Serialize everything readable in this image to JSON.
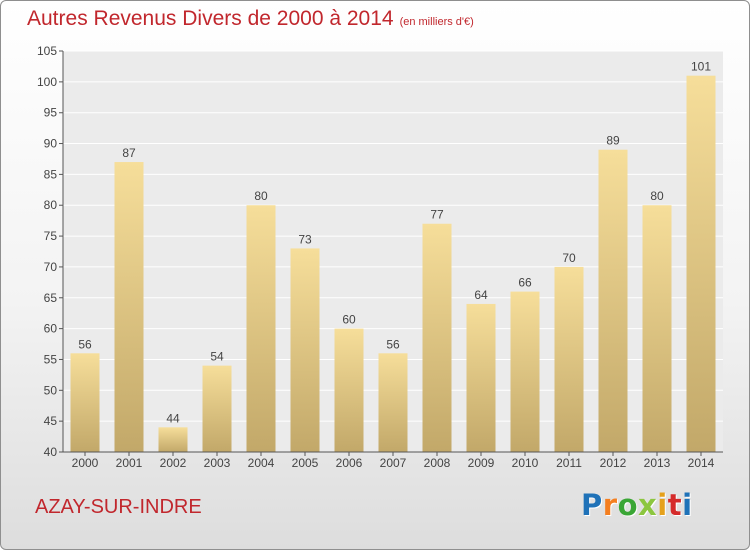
{
  "header": {
    "title": "Autres Revenus Divers de 2000 à 2014",
    "subtitle": "(en milliers d'€)"
  },
  "footer": {
    "commune": "AZAY-SUR-INDRE",
    "logo_text": "Proxiti"
  },
  "colors": {
    "title": "#c1272d",
    "bar_top": "#f6de9a",
    "bar_bottom": "#c2a869",
    "plot_background": "#ebebeb",
    "gridline": "#ffffff"
  },
  "chart_data": {
    "type": "bar",
    "title": "Autres Revenus Divers de 2000 à 2014",
    "subtitle": "(en milliers d'€)",
    "categories": [
      "2000",
      "2001",
      "2002",
      "2003",
      "2004",
      "2005",
      "2006",
      "2007",
      "2008",
      "2009",
      "2010",
      "2011",
      "2012",
      "2013",
      "2014"
    ],
    "values": [
      56,
      87,
      44,
      54,
      80,
      73,
      60,
      56,
      77,
      64,
      66,
      70,
      89,
      80,
      101
    ],
    "ylim": [
      40,
      105
    ],
    "yticks": [
      40,
      45,
      50,
      55,
      60,
      65,
      70,
      75,
      80,
      85,
      90,
      95,
      100,
      105
    ],
    "xlabel": "",
    "ylabel": "",
    "grid": true,
    "data_labels": true
  }
}
